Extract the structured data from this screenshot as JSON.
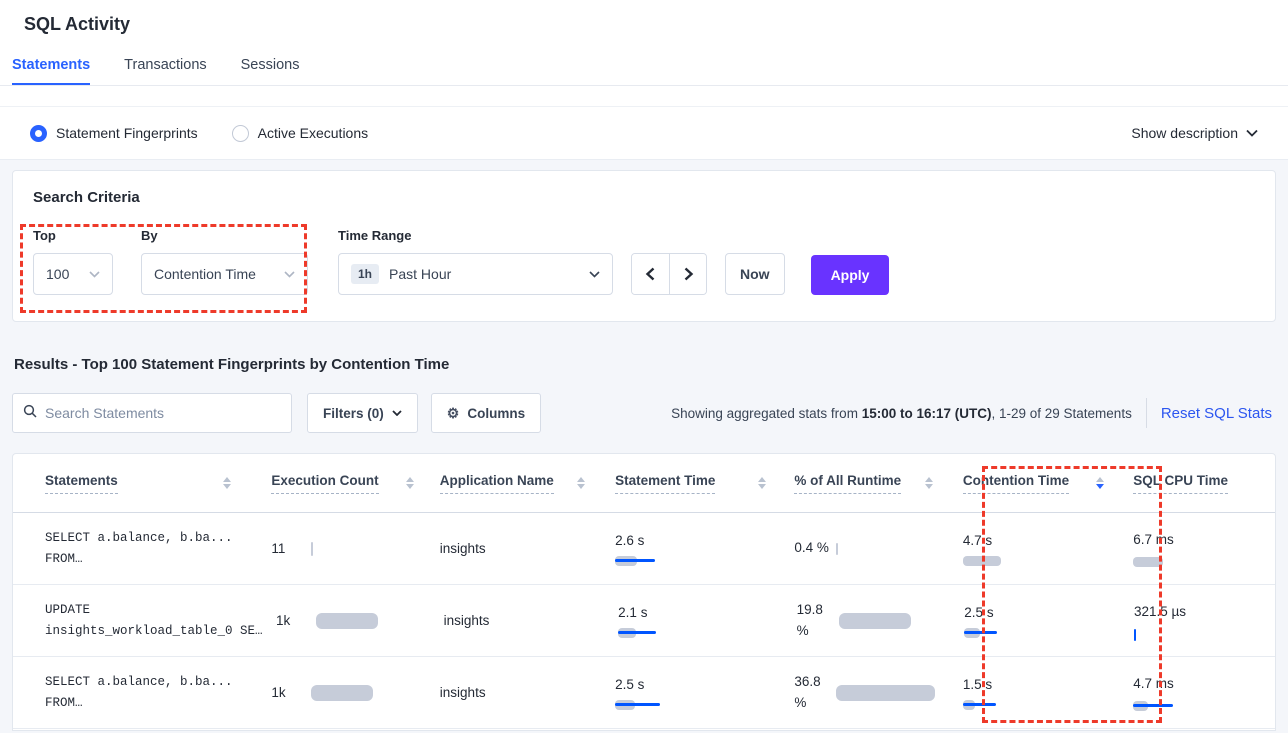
{
  "title": "SQL Activity",
  "tabs": [
    {
      "label": "Statements"
    },
    {
      "label": "Transactions"
    },
    {
      "label": "Sessions"
    }
  ],
  "active_tab": "Statements",
  "view_bar": {
    "fingerprints_label": "Statement Fingerprints",
    "active_exec_label": "Active Executions",
    "selected": "Statement Fingerprints",
    "show_description_label": "Show description"
  },
  "search_criteria": {
    "heading": "Search Criteria",
    "top_label": "Top",
    "top_value": "100",
    "by_label": "By",
    "by_value": "Contention Time",
    "time_range_label": "Time Range",
    "time_badge": "1h",
    "time_value": "Past Hour",
    "now_label": "Now",
    "apply_label": "Apply"
  },
  "results_bar": {
    "heading": "Results - Top 100 Statement Fingerprints by Contention Time",
    "search_placeholder": "Search Statements",
    "filters_label": "Filters (0)",
    "columns_label": "Columns",
    "gear_glyph": "⚙",
    "showing_prefix": "Showing aggregated stats from ",
    "showing_range": "15:00 to 16:17 (UTC)",
    "showing_suffix": ", 1-29 of 29 Statements",
    "reset_label": "Reset SQL Stats"
  },
  "table": {
    "columns": [
      {
        "label": "Statements"
      },
      {
        "label": "Execution Count"
      },
      {
        "label": "Application Name"
      },
      {
        "label": "Statement Time"
      },
      {
        "label": "% of All Runtime"
      },
      {
        "label": "Contention Time"
      },
      {
        "label": "SQL CPU Time"
      }
    ],
    "sorted_column": "Contention Time",
    "sort_direction": "desc",
    "rows": [
      {
        "stmt1": "SELECT a.balance, b.ba...",
        "stmt2": "FROM…",
        "exec": "11",
        "app": "insights",
        "stmt_time": "2.6 s",
        "pct": "0.4 %",
        "contention": "4.7 s",
        "cpu": "6.7 ms",
        "bars": {
          "exec": "width:2px;height:14px;border-radius:1px;top:1px",
          "pct": "width:2px;height:12px;border-radius:1px;top:2px",
          "st_gray": "width:22px",
          "st_blue": "width:40px",
          "ct_gray": "width:38px",
          "ct_blue": "display:none",
          "cpu_gray": "width:30px",
          "cpu_blue": "display:none"
        }
      },
      {
        "stmt1": "UPDATE",
        "stmt2": "insights_workload_table_0 SE…",
        "exec": "1k",
        "app": "insights",
        "stmt_time": "2.1 s",
        "pct": "19.8 %",
        "contention": "2.5 s",
        "cpu": "321.5 µs",
        "bars": {
          "exec": "width:62px",
          "pct": "width:72px",
          "st_gray": "width:18px",
          "st_blue": "width:38px",
          "ct_gray": "width:16px",
          "ct_blue": "width:33px",
          "cpu_gray": "display:none",
          "cpu_blue": "width:2px;height:12px;top:0;border-radius:1px"
        }
      },
      {
        "stmt1": "SELECT a.balance, b.ba...",
        "stmt2": "FROM…",
        "exec": "1k",
        "app": "insights",
        "stmt_time": "2.5 s",
        "pct": "36.8 %",
        "contention": "1.5 s",
        "cpu": "4.7 ms",
        "bars": {
          "exec": "width:62px",
          "pct": "width:99px",
          "st_gray": "width:20px",
          "st_blue": "width:45px",
          "ct_gray": "width:12px",
          "ct_blue": "width:33px",
          "cpu_gray": "width:15px",
          "cpu_blue": "width:40px"
        }
      }
    ]
  },
  "colors": {
    "accent_blue": "#2962ff",
    "bar_blue": "#0055ff",
    "bar_gray": "#c6ccd9",
    "apply_purple": "#6933ff",
    "annotation_red": "#ee3a2a",
    "link_blue": "#2c56f0",
    "page_background": "#f4f6fa"
  }
}
